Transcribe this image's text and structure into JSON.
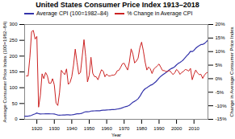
{
  "chart_data": {
    "type": "line",
    "title": "United States Consumer Price Index 1913–2018",
    "xlabel": "Year",
    "ylabel": "Average Consumer Price Index (100=1982–84)",
    "y2label": "Change in Average Consumer Price Index",
    "x": [
      1913,
      1914,
      1915,
      1916,
      1917,
      1918,
      1919,
      1920,
      1921,
      1922,
      1923,
      1924,
      1925,
      1926,
      1927,
      1928,
      1929,
      1930,
      1931,
      1932,
      1933,
      1934,
      1935,
      1936,
      1937,
      1938,
      1939,
      1940,
      1941,
      1942,
      1943,
      1944,
      1945,
      1946,
      1947,
      1948,
      1949,
      1950,
      1951,
      1952,
      1953,
      1954,
      1955,
      1956,
      1957,
      1958,
      1959,
      1960,
      1961,
      1962,
      1963,
      1964,
      1965,
      1966,
      1967,
      1968,
      1969,
      1970,
      1971,
      1972,
      1973,
      1974,
      1975,
      1976,
      1977,
      1978,
      1979,
      1980,
      1981,
      1982,
      1983,
      1984,
      1985,
      1986,
      1987,
      1988,
      1989,
      1990,
      1991,
      1992,
      1993,
      1994,
      1995,
      1996,
      1997,
      1998,
      1999,
      2000,
      2001,
      2002,
      2003,
      2004,
      2005,
      2006,
      2007,
      2008,
      2009,
      2010,
      2011,
      2012,
      2013,
      2014,
      2015,
      2016,
      2017,
      2018
    ],
    "series": [
      {
        "name": "Average CPI (100=1982–84)",
        "color": "#3333AA",
        "values": [
          9.9,
          10.0,
          10.1,
          10.9,
          12.8,
          15.1,
          17.3,
          20.0,
          17.9,
          16.8,
          17.1,
          17.1,
          17.5,
          17.7,
          17.4,
          17.1,
          17.1,
          16.7,
          15.2,
          13.7,
          13.0,
          13.4,
          13.7,
          13.9,
          14.4,
          14.1,
          13.9,
          14.0,
          14.7,
          16.3,
          17.3,
          17.6,
          18.0,
          19.5,
          22.3,
          24.1,
          23.8,
          24.1,
          26.0,
          26.5,
          26.7,
          26.9,
          26.8,
          27.2,
          28.1,
          28.9,
          29.1,
          29.6,
          29.9,
          30.2,
          30.6,
          31.0,
          31.5,
          32.4,
          33.4,
          34.8,
          36.7,
          38.8,
          40.5,
          41.8,
          44.4,
          49.3,
          53.8,
          56.9,
          60.6,
          65.2,
          72.6,
          82.4,
          90.9,
          96.5,
          99.6,
          103.9,
          107.6,
          109.6,
          113.6,
          118.3,
          124.0,
          130.7,
          136.2,
          140.3,
          144.5,
          148.2,
          152.4,
          156.9,
          160.5,
          163.0,
          166.6,
          172.2,
          177.1,
          179.9,
          184.0,
          188.9,
          195.3,
          201.6,
          207.3,
          215.3,
          214.5,
          218.1,
          224.9,
          229.6,
          233.0,
          236.7,
          237.0,
          240.0,
          245.1,
          251.1
        ]
      },
      {
        "name": "% Change in Average CPI",
        "color": "#CC2222",
        "axis": "y2",
        "values": [
          null,
          1.0,
          1.0,
          7.9,
          17.4,
          17.8,
          14.6,
          15.6,
          -10.5,
          -6.2,
          1.8,
          0.0,
          2.3,
          1.1,
          -1.7,
          -1.7,
          0.0,
          -2.3,
          -9.0,
          -9.9,
          -5.1,
          3.1,
          2.2,
          1.5,
          3.6,
          -2.1,
          -1.4,
          0.7,
          5.0,
          10.9,
          6.1,
          1.7,
          2.3,
          8.3,
          14.4,
          8.1,
          -1.2,
          1.3,
          7.9,
          2.0,
          0.8,
          0.7,
          -0.4,
          1.5,
          3.3,
          2.8,
          0.7,
          1.7,
          1.0,
          1.0,
          1.3,
          1.3,
          1.6,
          2.9,
          3.1,
          4.2,
          5.5,
          5.7,
          4.4,
          3.2,
          6.2,
          11.0,
          9.1,
          5.8,
          6.5,
          7.6,
          11.4,
          13.5,
          10.3,
          6.2,
          3.2,
          4.3,
          3.6,
          1.9,
          3.6,
          4.1,
          4.8,
          5.4,
          4.2,
          3.0,
          3.0,
          2.6,
          2.8,
          3.0,
          2.3,
          1.5,
          2.2,
          3.4,
          2.8,
          1.6,
          2.3,
          2.7,
          3.4,
          3.2,
          2.8,
          3.8,
          -0.4,
          1.6,
          3.2,
          2.1,
          1.5,
          1.6,
          0.1,
          1.3,
          2.1,
          2.4
        ]
      }
    ],
    "xlim": [
      1913,
      2018
    ],
    "xticks": [
      1920,
      1930,
      1940,
      1950,
      1960,
      1970,
      1980,
      1990,
      2000,
      2010
    ],
    "ylim": [
      0,
      300
    ],
    "yticks": [
      0,
      50,
      100,
      150,
      200,
      250,
      300
    ],
    "y2lim": [
      -15,
      20
    ],
    "y2ticks": [
      {
        "value": -15,
        "label": "-15%"
      },
      {
        "value": -10,
        "label": "-10%"
      },
      {
        "value": -5,
        "label": "-5%"
      },
      {
        "value": 0,
        "label": "0%"
      },
      {
        "value": 5,
        "label": "5%"
      },
      {
        "value": 10,
        "label": "10%"
      },
      {
        "value": 15,
        "label": "15%"
      },
      {
        "value": 20,
        "label": "20%"
      }
    ],
    "legend": "upper left",
    "grid": false
  }
}
